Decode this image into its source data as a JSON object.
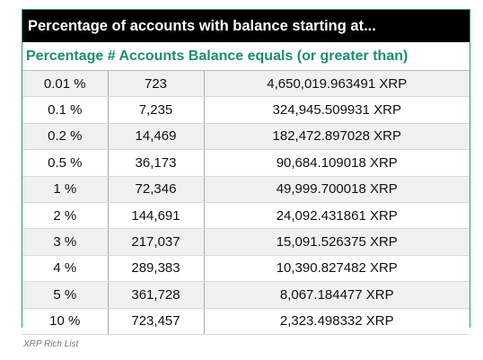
{
  "chart_data": {
    "type": "table",
    "title": "Percentage of accounts with balance starting at...",
    "columns": [
      "Percentage",
      "# Accounts",
      "Balance equals (or greater than)"
    ],
    "rows": [
      [
        "0.01 %",
        "723",
        "4,650,019.963491 XRP"
      ],
      [
        "0.1 %",
        "7,235",
        "324,945.509931 XRP"
      ],
      [
        "0.2 %",
        "14,469",
        "182,472.897028 XRP"
      ],
      [
        "0.5 %",
        "36,173",
        "90,684.109018 XRP"
      ],
      [
        "1 %",
        "72,346",
        "49,999.700018 XRP"
      ],
      [
        "2 %",
        "144,691",
        "24,092.431861 XRP"
      ],
      [
        "3 %",
        "217,037",
        "15,091.526375 XRP"
      ],
      [
        "4 %",
        "289,383",
        "10,390.827482 XRP"
      ],
      [
        "5 %",
        "361,728",
        "8,067.184477 XRP"
      ],
      [
        "10 %",
        "723,457",
        "2,323.498332 XRP"
      ]
    ]
  },
  "header": {
    "subtitle": "Percentage # Accounts Balance equals (or greater than)"
  },
  "caption": "XRP Rich List",
  "colors": {
    "title_bg": "#000000",
    "subtitle_text": "#1c8f6f",
    "row_alt": "#f0f0f0"
  }
}
